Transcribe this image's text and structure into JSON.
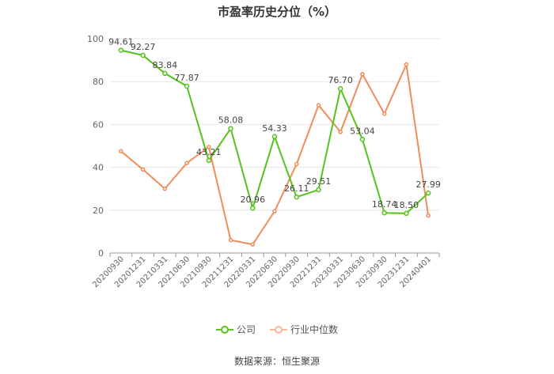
{
  "chart_data": {
    "type": "line",
    "title": "市盈率历史分位（%）",
    "categories": [
      "20200930",
      "20201231",
      "20210331",
      "20210630",
      "20210930",
      "20211231",
      "20220331",
      "20220630",
      "20220930",
      "20221231",
      "20230331",
      "20230630",
      "20230930",
      "20231231",
      "20240401"
    ],
    "series": [
      {
        "name": "公司",
        "color": "#52c41a",
        "values": [
          94.61,
          92.27,
          83.84,
          77.87,
          43.21,
          58.08,
          20.96,
          54.33,
          26.11,
          29.51,
          76.7,
          53.04,
          18.74,
          18.5,
          27.99
        ],
        "labels": [
          "94.61",
          "92.27",
          "83.84",
          "77.87",
          "43.21",
          "58.08",
          "20.96",
          "54.33",
          "26.11",
          "29.51",
          "76.70",
          "53.04",
          "18.74",
          "18.50",
          "27.99"
        ]
      },
      {
        "name": "行业中位数",
        "color": "#f08c5a",
        "values": [
          47.5,
          39,
          30,
          42,
          49.5,
          6,
          4,
          19.5,
          41.5,
          69,
          56.5,
          83.5,
          65,
          88,
          17.5
        ]
      }
    ],
    "ylim": [
      0,
      100
    ],
    "yticks": [
      0,
      20,
      40,
      60,
      80,
      100
    ],
    "grid": true,
    "legend_position": "bottom"
  },
  "source": "数据来源：恒生聚源"
}
